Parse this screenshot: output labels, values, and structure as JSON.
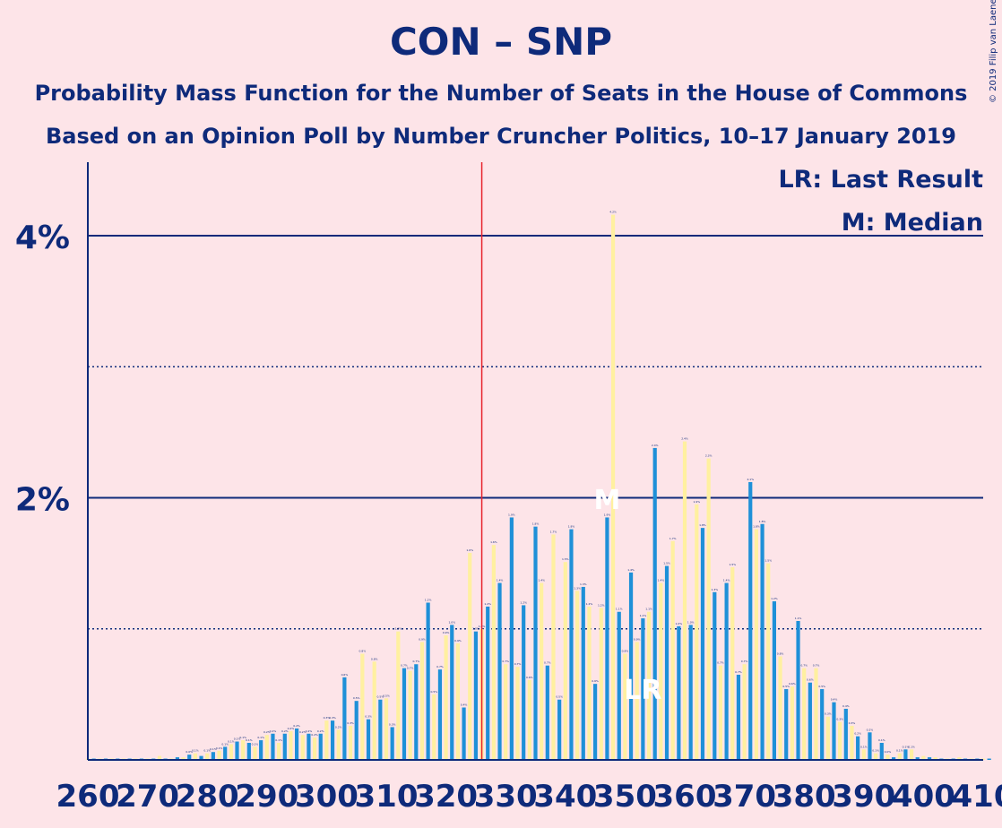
{
  "title": "CON – SNP",
  "subtitle": "Probability Mass Function for the Number of Seats in the House of Commons",
  "subtitle2": "Based on an Opinion Poll by Number Cruncher Politics, 10–17 January 2019",
  "copyright": "© 2019 Filip van Laenen",
  "legend": {
    "lr": "LR: Last Result",
    "median": "M: Median"
  },
  "markers": {
    "last_result_label": "LR",
    "median_label": "M"
  },
  "colors": {
    "background": "#fde4e8",
    "blue": "#1e90d8",
    "yellow": "#fff0a0",
    "text": "#0e2a7a",
    "majority_line": "#e8232b"
  },
  "chart_data": {
    "type": "bar",
    "x_start": 260,
    "x_end": 410,
    "xticks": [
      260,
      270,
      280,
      290,
      300,
      310,
      320,
      330,
      340,
      350,
      360,
      370,
      380,
      390,
      400,
      410
    ],
    "yticks": [
      {
        "value": 2,
        "label": "2%"
      },
      {
        "value": 4,
        "label": "4%"
      }
    ],
    "ylim": [
      0,
      4.5
    ],
    "grid_dotted": [
      1,
      3
    ],
    "majority_line": 326,
    "median": 347,
    "last_result": 353,
    "series": [
      {
        "name": "blue",
        "values": [
          0.01,
          0.01,
          0.01,
          0.01,
          0.01,
          0.01,
          0.01,
          0.01,
          0.01,
          0.01,
          0.01,
          0.01,
          0.03,
          0.01,
          0.01,
          0.02,
          0.02,
          0.04,
          0.05,
          0.03,
          0.05,
          0.06,
          0.07,
          0.1,
          0.12,
          0.14,
          0.15,
          0.13,
          0.1,
          0.15,
          0.19,
          0.2,
          0.13,
          0.2,
          0.22,
          0.24,
          0.19,
          0.2,
          0.17,
          0.2,
          0.3,
          0.3,
          0.23,
          0.63,
          0.26,
          0.45,
          0.81,
          0.31,
          0.75,
          0.46,
          0.47,
          0.25,
          0.98,
          0.7,
          0.68,
          0.73,
          0.9,
          1.2,
          0.5,
          0.69,
          0.95,
          1.03,
          0.89,
          0.4,
          1.58,
          0.98,
          1.0,
          1.17,
          1.64,
          1.35,
          0.73,
          1.85,
          0.71,
          1.18,
          0.61,
          1.78,
          1.35,
          0.72,
          1.72,
          0.46,
          1.51,
          1.76,
          1.29,
          1.32,
          1.17,
          0.58,
          1.16,
          1.85,
          4.16,
          1.13,
          0.81,
          1.43,
          0.9,
          1.08,
          1.13,
          2.38,
          1.35,
          1.48,
          1.67,
          1.02,
          2.43,
          1.03,
          1.95,
          1.77,
          2.3,
          1.28,
          0.72,
          1.35,
          1.47,
          0.65,
          0.73,
          2.12,
          1.76,
          1.8,
          1.5,
          1.21,
          0.79,
          0.54,
          0.56,
          1.06,
          0.7,
          0.59,
          0.7,
          0.54,
          0.33,
          0.44,
          0.29,
          0.39,
          0.26,
          0.18,
          0.08,
          0.21,
          0.05,
          0.13,
          0.04,
          0.02,
          0.05,
          0.08,
          0.08,
          0.02,
          0.03,
          0.02,
          0.02,
          0.01,
          0.01,
          0.01,
          0.02,
          0.01,
          0.01,
          0.01,
          0.01,
          0.01
        ]
      }
    ],
    "colors_by_parity": {
      "even": "yellow",
      "odd": "blue"
    }
  }
}
